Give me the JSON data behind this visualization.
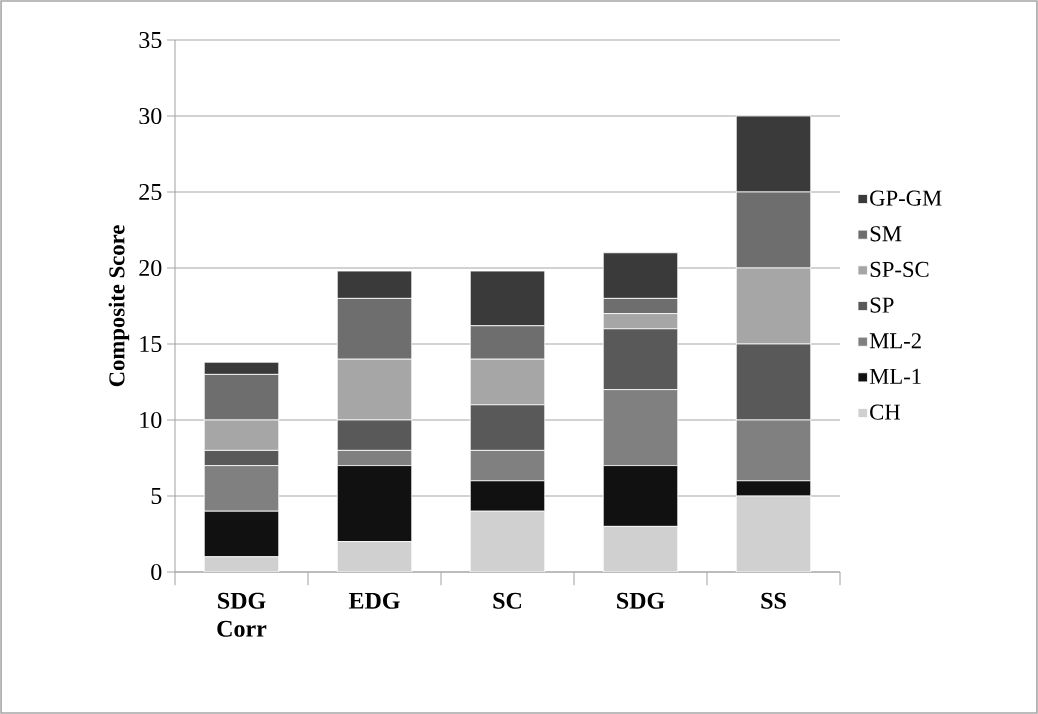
{
  "chart_data": {
    "type": "bar",
    "stacked": true,
    "ylabel": "Composite Score",
    "categories": [
      "SDG Corr",
      "EDG",
      "SC",
      "SDG",
      "SS"
    ],
    "series": [
      {
        "name": "CH",
        "color": "#d0d0d0",
        "values": [
          1,
          2,
          4,
          3,
          5
        ]
      },
      {
        "name": "ML-1",
        "color": "#111111",
        "values": [
          3,
          5,
          2,
          4,
          1
        ]
      },
      {
        "name": "ML-2",
        "color": "#808080",
        "values": [
          3,
          1,
          2,
          5,
          4
        ]
      },
      {
        "name": "SP",
        "color": "#595959",
        "values": [
          1,
          2,
          3,
          4,
          5
        ]
      },
      {
        "name": "SP-SC",
        "color": "#a6a6a6",
        "values": [
          2,
          4,
          3,
          1,
          5
        ]
      },
      {
        "name": "SM",
        "color": "#6e6e6e",
        "values": [
          3,
          4,
          2.2,
          1,
          5
        ]
      },
      {
        "name": "GP-GM",
        "color": "#3a3a3a",
        "values": [
          0.8,
          1.8,
          3.6,
          3,
          5
        ]
      }
    ],
    "ylim": [
      0,
      35
    ],
    "yticks": [
      0,
      5,
      10,
      15,
      20,
      25,
      30,
      35
    ],
    "grid": "y",
    "legend": "right"
  }
}
